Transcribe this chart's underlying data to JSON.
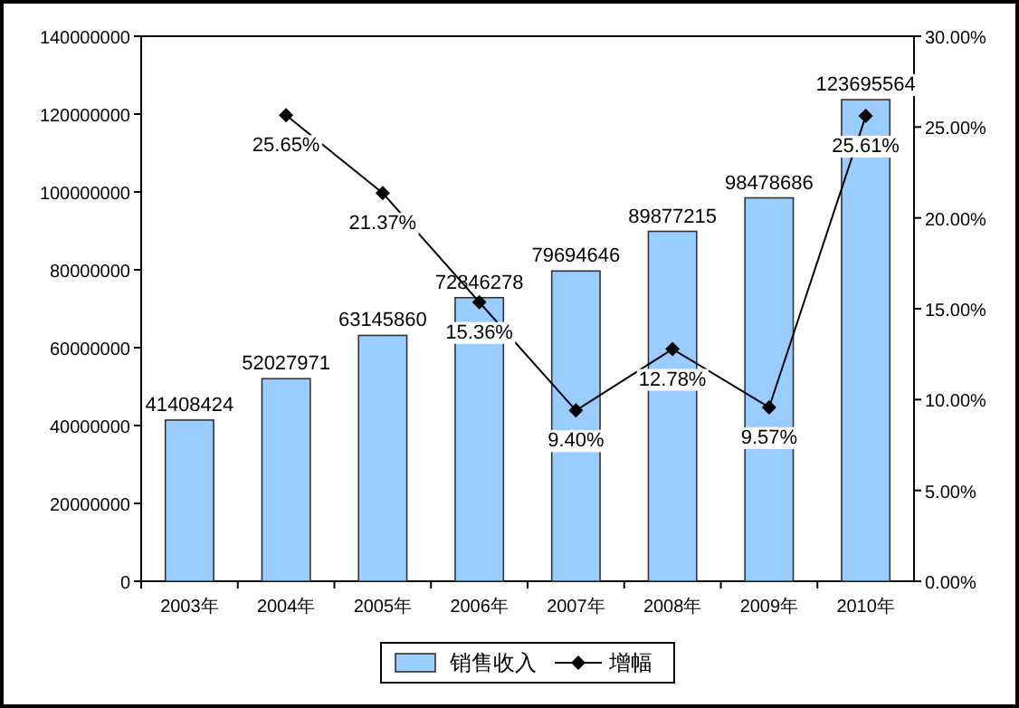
{
  "chart_data": {
    "type": "bar",
    "categories": [
      "2003年",
      "2004年",
      "2005年",
      "2006年",
      "2007年",
      "2008年",
      "2009年",
      "2010年"
    ],
    "series": [
      {
        "name": "销售收入",
        "color": "#99ccff",
        "values": [
          41408424,
          52027971,
          63145860,
          72846278,
          79694646,
          89877215,
          98478686,
          123695564
        ],
        "value_labels": [
          "41408424",
          "52027971",
          "63145860",
          "72846278",
          "79694646",
          "89877215",
          "98478686",
          "123695564"
        ]
      },
      {
        "name": "增幅",
        "type": "line",
        "axis": "y2",
        "color": "#000000",
        "marker": "diamond",
        "values": [
          null,
          25.65,
          21.37,
          15.36,
          9.4,
          12.78,
          9.57,
          25.61
        ],
        "value_labels": [
          null,
          "25.65%",
          "21.37%",
          "15.36%",
          "9.40%",
          "12.78%",
          "9.57%",
          "25.61%"
        ]
      }
    ],
    "ylim": [
      0,
      140000000
    ],
    "yticks": [
      0,
      20000000,
      40000000,
      60000000,
      80000000,
      100000000,
      120000000,
      140000000
    ],
    "y2lim": [
      0,
      30
    ],
    "y2ticks": [
      {
        "value": 0,
        "label": "0.00%"
      },
      {
        "value": 5,
        "label": "5.00%"
      },
      {
        "value": 10,
        "label": "10.00%"
      },
      {
        "value": 15,
        "label": "15.00%"
      },
      {
        "value": 20,
        "label": "20.00%"
      },
      {
        "value": 25,
        "label": "25.00%"
      },
      {
        "value": 30,
        "label": "30.00%"
      }
    ],
    "legend": "bottom",
    "grid": false
  }
}
